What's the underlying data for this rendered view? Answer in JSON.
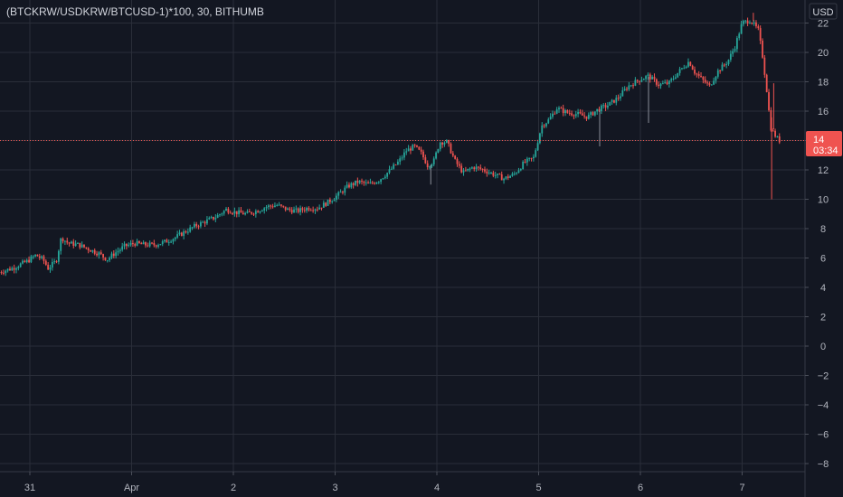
{
  "header": {
    "symbol_title": "(BTCKRW/USDKRW/BTCUSD-1)*100, 30, BITHUMB",
    "currency_button": "USD"
  },
  "price_tag": {
    "value": "14",
    "countdown": "03:34",
    "color": "#ef5350"
  },
  "colors": {
    "background": "#131722",
    "grid": "#2a2e39",
    "up": "#26a69a",
    "down": "#ef5350",
    "axis_text": "#b2b5be",
    "title_text": "#d1d4dc"
  },
  "chart_data": {
    "type": "candlestick",
    "title": "(BTCKRW/USDKRW/BTCUSD-1)*100, 30, BITHUMB",
    "y_axis": {
      "ticks": [
        22,
        20,
        18,
        16,
        14,
        12,
        10,
        8,
        6,
        4,
        2,
        0,
        -2,
        -4,
        -6,
        -8
      ],
      "tick_labels": [
        "22",
        "20",
        "18",
        "16",
        "14",
        "12",
        "10",
        "8",
        "6",
        "4",
        "2",
        "0",
        "−2",
        "−4",
        "−6",
        "−8"
      ],
      "range": [
        -9,
        23
      ],
      "position": "right",
      "unit": "USD"
    },
    "x_axis": {
      "ticks": [
        {
          "value": 0.0,
          "label": "31"
        },
        {
          "value": 1.0,
          "label": "Apr"
        },
        {
          "value": 2.0,
          "label": "2"
        },
        {
          "value": 3.0,
          "label": "3"
        },
        {
          "value": 4.0,
          "label": "4"
        },
        {
          "value": 5.0,
          "label": "5"
        },
        {
          "value": 6.0,
          "label": "6"
        },
        {
          "value": 7.0,
          "label": "7"
        }
      ],
      "range": [
        -0.3,
        7.5
      ],
      "unit": "days"
    },
    "grid": true,
    "last_price": 14,
    "price_path": [
      [
        -0.3,
        5.0
      ],
      [
        -0.15,
        5.3
      ],
      [
        0.0,
        5.8
      ],
      [
        0.08,
        6.2
      ],
      [
        0.15,
        5.9
      ],
      [
        0.2,
        5.3
      ],
      [
        0.28,
        5.8
      ],
      [
        0.33,
        7.4
      ],
      [
        0.4,
        7.0
      ],
      [
        0.5,
        6.9
      ],
      [
        0.6,
        6.6
      ],
      [
        0.7,
        6.3
      ],
      [
        0.78,
        5.9
      ],
      [
        0.85,
        6.3
      ],
      [
        0.95,
        6.8
      ],
      [
        1.05,
        7.0
      ],
      [
        1.15,
        6.9
      ],
      [
        1.25,
        6.9
      ],
      [
        1.35,
        7.1
      ],
      [
        1.45,
        7.4
      ],
      [
        1.55,
        7.8
      ],
      [
        1.65,
        8.2
      ],
      [
        1.75,
        8.5
      ],
      [
        1.85,
        8.8
      ],
      [
        1.95,
        9.3
      ],
      [
        2.05,
        9.1
      ],
      [
        2.15,
        9.0
      ],
      [
        2.25,
        9.2
      ],
      [
        2.35,
        9.5
      ],
      [
        2.45,
        9.6
      ],
      [
        2.55,
        9.3
      ],
      [
        2.65,
        9.2
      ],
      [
        2.75,
        9.4
      ],
      [
        2.85,
        9.4
      ],
      [
        2.95,
        9.8
      ],
      [
        3.05,
        10.3
      ],
      [
        3.15,
        10.9
      ],
      [
        3.25,
        11.2
      ],
      [
        3.35,
        11.0
      ],
      [
        3.45,
        11.3
      ],
      [
        3.55,
        11.9
      ],
      [
        3.65,
        12.6
      ],
      [
        3.72,
        13.3
      ],
      [
        3.8,
        13.6
      ],
      [
        3.87,
        13.1
      ],
      [
        3.93,
        12.3
      ],
      [
        3.99,
        12.6
      ],
      [
        4.05,
        13.9
      ],
      [
        4.12,
        13.9
      ],
      [
        4.2,
        12.6
      ],
      [
        4.28,
        11.8
      ],
      [
        4.38,
        12.2
      ],
      [
        4.48,
        12.0
      ],
      [
        4.58,
        11.7
      ],
      [
        4.68,
        11.4
      ],
      [
        4.78,
        11.7
      ],
      [
        4.88,
        12.5
      ],
      [
        4.97,
        12.8
      ],
      [
        5.05,
        15.0
      ],
      [
        5.12,
        15.4
      ],
      [
        5.2,
        16.2
      ],
      [
        5.3,
        15.9
      ],
      [
        5.4,
        15.8
      ],
      [
        5.5,
        15.6
      ],
      [
        5.6,
        16.1
      ],
      [
        5.7,
        16.4
      ],
      [
        5.8,
        16.9
      ],
      [
        5.9,
        17.7
      ],
      [
        6.0,
        18.1
      ],
      [
        6.1,
        18.4
      ],
      [
        6.2,
        17.8
      ],
      [
        6.3,
        17.9
      ],
      [
        6.4,
        18.7
      ],
      [
        6.5,
        19.4
      ],
      [
        6.55,
        18.7
      ],
      [
        6.62,
        18.2
      ],
      [
        6.7,
        17.7
      ],
      [
        6.78,
        18.7
      ],
      [
        6.88,
        19.4
      ],
      [
        6.95,
        20.4
      ],
      [
        7.02,
        22.0
      ],
      [
        7.1,
        22.2
      ],
      [
        7.18,
        21.5
      ],
      [
        7.22,
        19.8
      ],
      [
        7.26,
        17.6
      ],
      [
        7.3,
        14.9
      ],
      [
        7.33,
        14.5
      ],
      [
        7.38,
        14.0
      ]
    ],
    "spike_lows": [
      {
        "x": 3.94,
        "y": 11.0
      },
      {
        "x": 5.6,
        "y": 13.6
      },
      {
        "x": 6.08,
        "y": 15.2
      },
      {
        "x": 7.29,
        "y": 10.0
      }
    ],
    "spike_highs": [
      {
        "x": 7.11,
        "y": 22.7
      },
      {
        "x": 7.31,
        "y": 17.9
      }
    ]
  }
}
